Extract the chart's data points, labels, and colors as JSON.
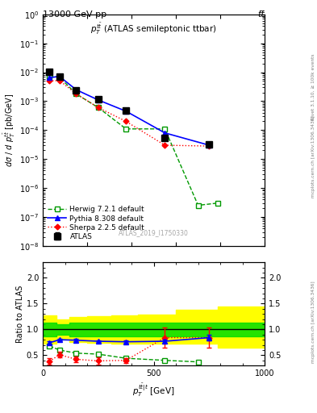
{
  "title_left": "13000 GeV pp",
  "title_right": "tt̅",
  "plot_label": "$p_T^{t\\bar{t}}$ (ATLAS semileptonic ttbar)",
  "watermark": "ATLAS_2019_I1750330",
  "right_label_top": "Rivet 3.1.10, ≥ 100k events",
  "right_label_bottom": "mcplots.cern.ch [arXiv:1306.3436]",
  "ylabel_main": "dσ / d p_T^{tbar(t)} [pb/GeV]",
  "ylabel_ratio": "Ratio to ATLAS",
  "xlabel": "$p_T^{t\\bar{t}|t}$ [GeV]",
  "ylim_main_lo": 1e-08,
  "ylim_main_hi": 1.0,
  "ylim_ratio_lo": 0.3,
  "ylim_ratio_hi": 2.3,
  "xlim_hi": 1000,
  "atlas_x": [
    30,
    75,
    150,
    250,
    375,
    550,
    750
  ],
  "atlas_y": [
    0.0102,
    0.007,
    0.0023,
    0.0012,
    0.00048,
    5.5e-05,
    3.2e-05
  ],
  "atlas_yerr_lo": [
    0.0008,
    0.0004,
    0.00015,
    8e-05,
    3e-05,
    5e-06,
    4e-06
  ],
  "atlas_yerr_hi": [
    0.0008,
    0.0004,
    0.00015,
    8e-05,
    3e-05,
    5e-06,
    4e-06
  ],
  "herwig_x": [
    30,
    75,
    150,
    250,
    375,
    550,
    700,
    790
  ],
  "herwig_y": [
    0.0072,
    0.0068,
    0.0018,
    0.0006,
    0.00011,
    0.00011,
    2.5e-07,
    3e-07
  ],
  "herwig_ratio": [
    0.68,
    0.6,
    0.54,
    0.52,
    0.44,
    0.4,
    0.37
  ],
  "pythia_x": [
    30,
    75,
    150,
    250,
    375,
    550,
    750
  ],
  "pythia_y": [
    0.0065,
    0.0072,
    0.0025,
    0.0011,
    0.00045,
    8e-05,
    3e-05
  ],
  "pythia_ratio": [
    0.74,
    0.8,
    0.79,
    0.77,
    0.76,
    0.77,
    0.84
  ],
  "pythia_ratio_err": [
    0.03,
    0.02,
    0.02,
    0.02,
    0.02,
    0.03,
    0.05
  ],
  "sherpa_x": [
    30,
    75,
    150,
    250,
    375,
    550,
    750
  ],
  "sherpa_y": [
    0.005,
    0.0052,
    0.0018,
    0.0006,
    0.0002,
    3e-05,
    2.8e-05
  ],
  "sherpa_ratio": [
    0.38,
    0.51,
    0.42,
    0.39,
    0.4,
    0.84,
    0.84
  ],
  "sherpa_ratio_err": [
    0.06,
    0.05,
    0.06,
    0.07,
    0.05,
    0.2,
    0.2
  ],
  "band_x_edges": [
    0,
    60,
    120,
    200,
    310,
    430,
    600,
    790,
    1000
  ],
  "band_green_lo": [
    0.86,
    0.9,
    0.87,
    0.86,
    0.86,
    0.86,
    0.86,
    0.86,
    0.86
  ],
  "band_green_hi": [
    1.13,
    1.1,
    1.13,
    1.13,
    1.13,
    1.13,
    1.13,
    1.13,
    1.13
  ],
  "band_yellow_lo": [
    0.72,
    0.8,
    0.76,
    0.74,
    0.73,
    0.72,
    0.72,
    0.65,
    0.65
  ],
  "band_yellow_hi": [
    1.27,
    1.2,
    1.24,
    1.26,
    1.27,
    1.28,
    1.38,
    1.45,
    1.45
  ],
  "colors": {
    "atlas": "#000000",
    "herwig": "#009900",
    "pythia": "#0000ff",
    "sherpa": "#ff0000",
    "band_green": "#00dd00",
    "band_yellow": "#ffff00"
  }
}
